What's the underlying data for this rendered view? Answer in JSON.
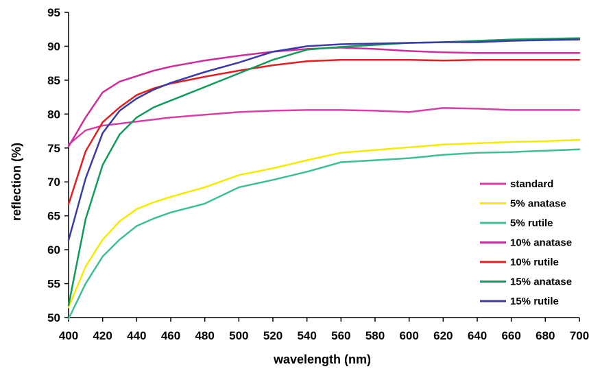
{
  "chart_data": {
    "type": "line",
    "xlabel": "wavelength (nm)",
    "ylabel": "reflection (%)",
    "xlim": [
      400,
      700
    ],
    "ylim": [
      50,
      95
    ],
    "xticks": [
      400,
      420,
      440,
      460,
      480,
      500,
      520,
      540,
      560,
      580,
      600,
      620,
      640,
      660,
      680,
      700
    ],
    "yticks": [
      50,
      55,
      60,
      65,
      70,
      75,
      80,
      85,
      90,
      95
    ],
    "grid": false,
    "legend_position": "right",
    "x": [
      400,
      410,
      420,
      430,
      440,
      450,
      460,
      480,
      500,
      520,
      540,
      560,
      580,
      600,
      620,
      640,
      660,
      680,
      700
    ],
    "series": [
      {
        "name": "standard",
        "color": "#d63fa6",
        "values": [
          75.5,
          77.6,
          78.3,
          78.6,
          78.9,
          79.2,
          79.5,
          79.9,
          80.3,
          80.5,
          80.6,
          80.6,
          80.5,
          80.3,
          80.9,
          80.8,
          80.6,
          80.6,
          80.6
        ]
      },
      {
        "name": "5% anatase",
        "color": "#f5ea00",
        "values": [
          51.5,
          57.5,
          61.5,
          64.2,
          66.0,
          67.0,
          67.8,
          69.2,
          71.0,
          72.0,
          73.2,
          74.3,
          74.7,
          75.1,
          75.5,
          75.7,
          75.9,
          76.0,
          76.2
        ]
      },
      {
        "name": "5% rutile",
        "color": "#3fbf8f",
        "values": [
          49.8,
          55.0,
          59.0,
          61.5,
          63.5,
          64.6,
          65.5,
          66.8,
          69.2,
          70.3,
          71.5,
          72.9,
          73.2,
          73.5,
          74.0,
          74.3,
          74.4,
          74.6,
          74.8
        ]
      },
      {
        "name": "10% anatase",
        "color": "#cc2d9b",
        "values": [
          75.2,
          79.5,
          83.2,
          84.8,
          85.6,
          86.4,
          87.0,
          87.9,
          88.6,
          89.2,
          89.6,
          89.8,
          89.6,
          89.3,
          89.1,
          89.0,
          89.0,
          89.0,
          89.0
        ]
      },
      {
        "name": "10% rutile",
        "color": "#e02020",
        "values": [
          66.7,
          74.5,
          78.8,
          81.0,
          82.8,
          83.8,
          84.5,
          85.5,
          86.4,
          87.2,
          87.8,
          88.0,
          88.0,
          88.0,
          87.9,
          88.0,
          88.0,
          88.0,
          88.0
        ]
      },
      {
        "name": "15% anatase",
        "color": "#119a5a",
        "values": [
          51.8,
          64.5,
          72.5,
          77.0,
          79.5,
          81.0,
          82.0,
          84.0,
          86.0,
          88.0,
          89.5,
          89.9,
          90.2,
          90.5,
          90.6,
          90.8,
          91.0,
          91.1,
          91.2
        ]
      },
      {
        "name": "15% rutile",
        "color": "#3a3aa8",
        "values": [
          61.4,
          70.5,
          77.2,
          80.5,
          82.3,
          83.6,
          84.6,
          86.2,
          87.6,
          89.2,
          90.0,
          90.3,
          90.4,
          90.5,
          90.6,
          90.6,
          90.8,
          90.9,
          91.0
        ]
      }
    ]
  }
}
